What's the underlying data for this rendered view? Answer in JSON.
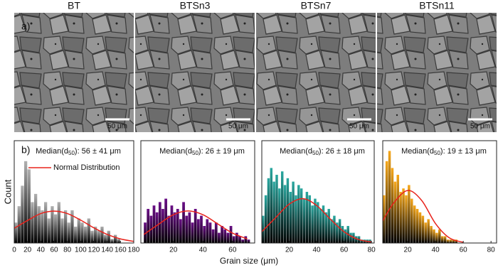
{
  "figure": {
    "panel_a_label": "a)",
    "panel_b_label": "b)",
    "x_label": "Grain size (μm)",
    "y_label": "Count"
  },
  "chart_data": [
    {
      "type": "histogram",
      "title": "BT",
      "title_color": "#111111",
      "scale_bar": "50 μm",
      "color": "#b0b0b0",
      "median": {
        "prefix": "Median(d",
        "sub": "50",
        "suffix": "): 56 ± 41 μm"
      },
      "bins": [
        0,
        5,
        10,
        15,
        20,
        25,
        30,
        35,
        40,
        45,
        50,
        55,
        60,
        65,
        70,
        75,
        80,
        85,
        90,
        95,
        100,
        105,
        110,
        115,
        120,
        125,
        130,
        135,
        140,
        145,
        150,
        155,
        160
      ],
      "counts": [
        5,
        9,
        14,
        20,
        18,
        10,
        12,
        9,
        8,
        10,
        6,
        9,
        7,
        10,
        6,
        8,
        5,
        8,
        4,
        6,
        5,
        4,
        6,
        3,
        4,
        3,
        4,
        2,
        3,
        1,
        2,
        1
      ],
      "xlim": [
        0,
        180
      ],
      "xticks": [
        0,
        20,
        40,
        60,
        80,
        100,
        120,
        140,
        160,
        180
      ],
      "ylim": [
        0,
        25
      ],
      "fit": {
        "name": "Normal Distribution",
        "color": "#e8231c",
        "x": [
          0,
          20,
          40,
          60,
          80,
          100,
          120,
          140,
          160,
          180
        ],
        "values": [
          3.6,
          5.5,
          7.2,
          7.8,
          7.2,
          5.6,
          3.7,
          2.1,
          1,
          0.4
        ]
      }
    },
    {
      "type": "histogram",
      "title": "BTSn3",
      "title_color": "#6a1b8a",
      "scale_bar": "50 μm",
      "color": "#6a0f86",
      "median": {
        "prefix": "Median(d",
        "sub": "50",
        "suffix": "): 26 ± 19 μm"
      },
      "bins": [
        0,
        2,
        4,
        6,
        8,
        10,
        12,
        14,
        16,
        18,
        20,
        22,
        24,
        26,
        28,
        30,
        32,
        34,
        36,
        38,
        40,
        42,
        44,
        46,
        48,
        50,
        52,
        54,
        56,
        58,
        60,
        62,
        64,
        66,
        68,
        70,
        72
      ],
      "counts": [
        6,
        10,
        8,
        11,
        9,
        12,
        10,
        13,
        8,
        11,
        9,
        10,
        7,
        12,
        8,
        9,
        6,
        10,
        7,
        8,
        5,
        7,
        6,
        4,
        6,
        3,
        5,
        4,
        3,
        5,
        2,
        3,
        2,
        1,
        2,
        1
      ],
      "xlim": [
        -2,
        75
      ],
      "xticks": [
        20,
        40,
        60
      ],
      "ylim": [
        0,
        30
      ],
      "fit": {
        "color": "#e8231c",
        "x": [
          0,
          10,
          20,
          30,
          40,
          50,
          60,
          70
        ],
        "values": [
          2.5,
          5.5,
          8.3,
          9.4,
          8.3,
          5.6,
          2.9,
          1.2
        ]
      }
    },
    {
      "type": "histogram",
      "title": "BTSn7",
      "title_color": "#1a9a8e",
      "scale_bar": "50 μm",
      "color": "#2aa8a0",
      "median": {
        "prefix": "Median(d",
        "sub": "50",
        "suffix": "): 26 ± 18 μm"
      },
      "bins": [
        0,
        2,
        4,
        6,
        8,
        10,
        12,
        14,
        16,
        18,
        20,
        22,
        24,
        26,
        28,
        30,
        32,
        34,
        36,
        38,
        40,
        42,
        44,
        46,
        48,
        50,
        52,
        54,
        56,
        58,
        60,
        62,
        64,
        66,
        68,
        70,
        72,
        74,
        76,
        78,
        80
      ],
      "counts": [
        8,
        14,
        19,
        22,
        18,
        20,
        16,
        21,
        17,
        19,
        15,
        18,
        14,
        17,
        16,
        13,
        15,
        14,
        11,
        13,
        12,
        10,
        11,
        9,
        10,
        7,
        8,
        6,
        7,
        5,
        4,
        5,
        3,
        3,
        2,
        2,
        1,
        1,
        1,
        1
      ],
      "xlim": [
        0,
        82
      ],
      "xticks": [
        20,
        40,
        60,
        80
      ],
      "ylim": [
        0,
        30
      ],
      "fit": {
        "color": "#e8231c",
        "x": [
          0,
          10,
          20,
          30,
          40,
          50,
          60,
          70,
          80
        ],
        "values": [
          3.3,
          7.4,
          11.4,
          13,
          11,
          7,
          3.3,
          1.1,
          0.3
        ]
      }
    },
    {
      "type": "histogram",
      "title": "BTSn11",
      "title_color": "#f5a800",
      "scale_bar": "50 μm",
      "color": "#f7a81b",
      "median": {
        "prefix": "Median(d",
        "sub": "50",
        "suffix": "): 19 ± 13 μm"
      },
      "bins": [
        2,
        4,
        6,
        8,
        10,
        12,
        14,
        16,
        18,
        20,
        22,
        24,
        26,
        28,
        30,
        32,
        34,
        36,
        38,
        40,
        42,
        44,
        46,
        48,
        50,
        52,
        54,
        56
      ],
      "counts": [
        14,
        24,
        27,
        22,
        18,
        20,
        15,
        16,
        14,
        17,
        13,
        11,
        10,
        9,
        8,
        6,
        7,
        5,
        4,
        3,
        4,
        2,
        2,
        1,
        1,
        1,
        1
      ],
      "xlim": [
        2,
        84
      ],
      "xticks": [
        20,
        40,
        60,
        80
      ],
      "ylim": [
        0,
        30
      ],
      "fit": {
        "color": "#e8231c",
        "x": [
          2,
          10,
          20,
          30,
          40,
          50,
          60
        ],
        "values": [
          6.5,
          11.8,
          15.4,
          12.5,
          5.7,
          1.5,
          0.2
        ]
      }
    }
  ]
}
